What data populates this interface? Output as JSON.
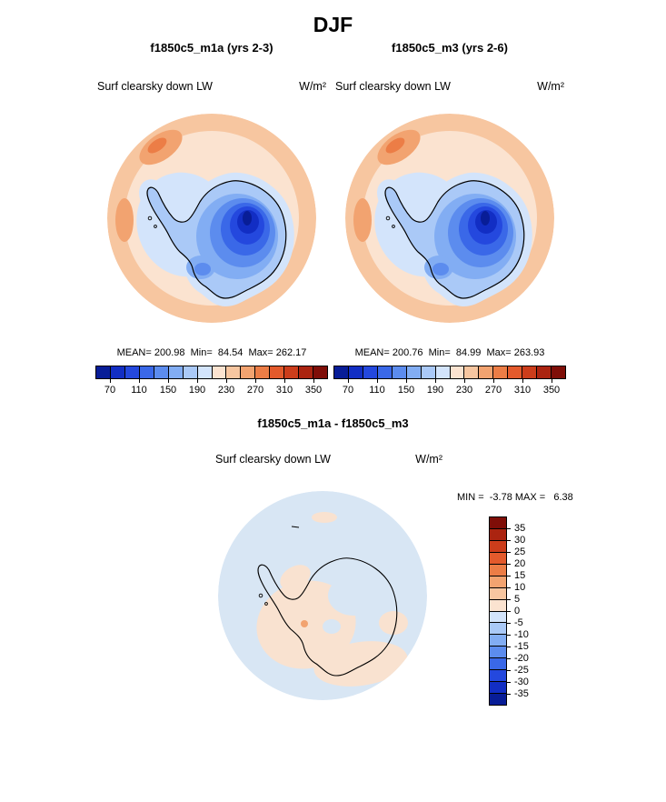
{
  "title": "DJF",
  "chart_data": [
    {
      "type": "heatmap",
      "panel": "left",
      "title": "f1850c5_m1a (yrs 2-3)",
      "variable": "Surf clearsky down LW",
      "units": "W/m²",
      "projection": "south polar stereographic (Antarctica)",
      "stats_text": "MEAN= 200.98  Min=  84.54  Max= 262.17",
      "stats": {
        "mean": 200.98,
        "min": 84.54,
        "max": 262.17
      },
      "colorbar": {
        "orientation": "horizontal",
        "range": [
          50,
          370
        ],
        "step": 20,
        "ticks": [
          70,
          110,
          150,
          190,
          230,
          270,
          310,
          350
        ],
        "tick_boundaries": [
          1,
          3,
          5,
          7,
          9,
          11,
          13,
          15
        ],
        "colors": [
          "#081d97",
          "#122ec4",
          "#2448de",
          "#3a68e8",
          "#5c8cee",
          "#82adf3",
          "#aac9f7",
          "#d3e4fb",
          "#fbe3d0",
          "#f7c6a0",
          "#f2a370",
          "#ec7d46",
          "#e35a2c",
          "#cc3d1b",
          "#ab2410",
          "#7f0e08"
        ]
      }
    },
    {
      "type": "heatmap",
      "panel": "right",
      "title": "f1850c5_m3 (yrs 2-6)",
      "variable": "Surf clearsky down LW",
      "units": "W/m²",
      "projection": "south polar stereographic (Antarctica)",
      "stats_text": "MEAN= 200.76  Min=  84.99  Max= 263.93",
      "stats": {
        "mean": 200.76,
        "min": 84.99,
        "max": 263.93
      },
      "colorbar": {
        "orientation": "horizontal",
        "range": [
          50,
          370
        ],
        "step": 20,
        "ticks": [
          70,
          110,
          150,
          190,
          230,
          270,
          310,
          350
        ],
        "tick_boundaries": [
          1,
          3,
          5,
          7,
          9,
          11,
          13,
          15
        ],
        "colors": [
          "#081d97",
          "#122ec4",
          "#2448de",
          "#3a68e8",
          "#5c8cee",
          "#82adf3",
          "#aac9f7",
          "#d3e4fb",
          "#fbe3d0",
          "#f7c6a0",
          "#f2a370",
          "#ec7d46",
          "#e35a2c",
          "#cc3d1b",
          "#ab2410",
          "#7f0e08"
        ]
      }
    },
    {
      "type": "heatmap",
      "panel": "difference",
      "title": "f1850c5_m1a - f1850c5_m3",
      "variable": "Surf clearsky down LW",
      "units": "W/m²",
      "projection": "south polar stereographic (Antarctica)",
      "stats_text": "MIN =  -3.78 MAX =   6.38",
      "stats": {
        "min": -3.78,
        "max": 6.38
      },
      "colorbar": {
        "orientation": "vertical",
        "range": [
          -40,
          40
        ],
        "step": 5,
        "ticks": [
          35,
          30,
          25,
          20,
          15,
          10,
          5,
          0,
          -5,
          -10,
          -15,
          -20,
          -25,
          -30,
          -35
        ],
        "tick_boundaries": [
          1,
          2,
          3,
          4,
          5,
          6,
          7,
          8,
          9,
          10,
          11,
          12,
          13,
          14,
          15
        ],
        "colors": [
          "#7f0e08",
          "#ab2410",
          "#cc3d1b",
          "#e35a2c",
          "#ec7d46",
          "#f2a370",
          "#f7c6a0",
          "#fbe3d0",
          "#d3e4fb",
          "#aac9f7",
          "#82adf3",
          "#5c8cee",
          "#3a68e8",
          "#2448de",
          "#122ec4",
          "#081d97"
        ]
      }
    }
  ]
}
